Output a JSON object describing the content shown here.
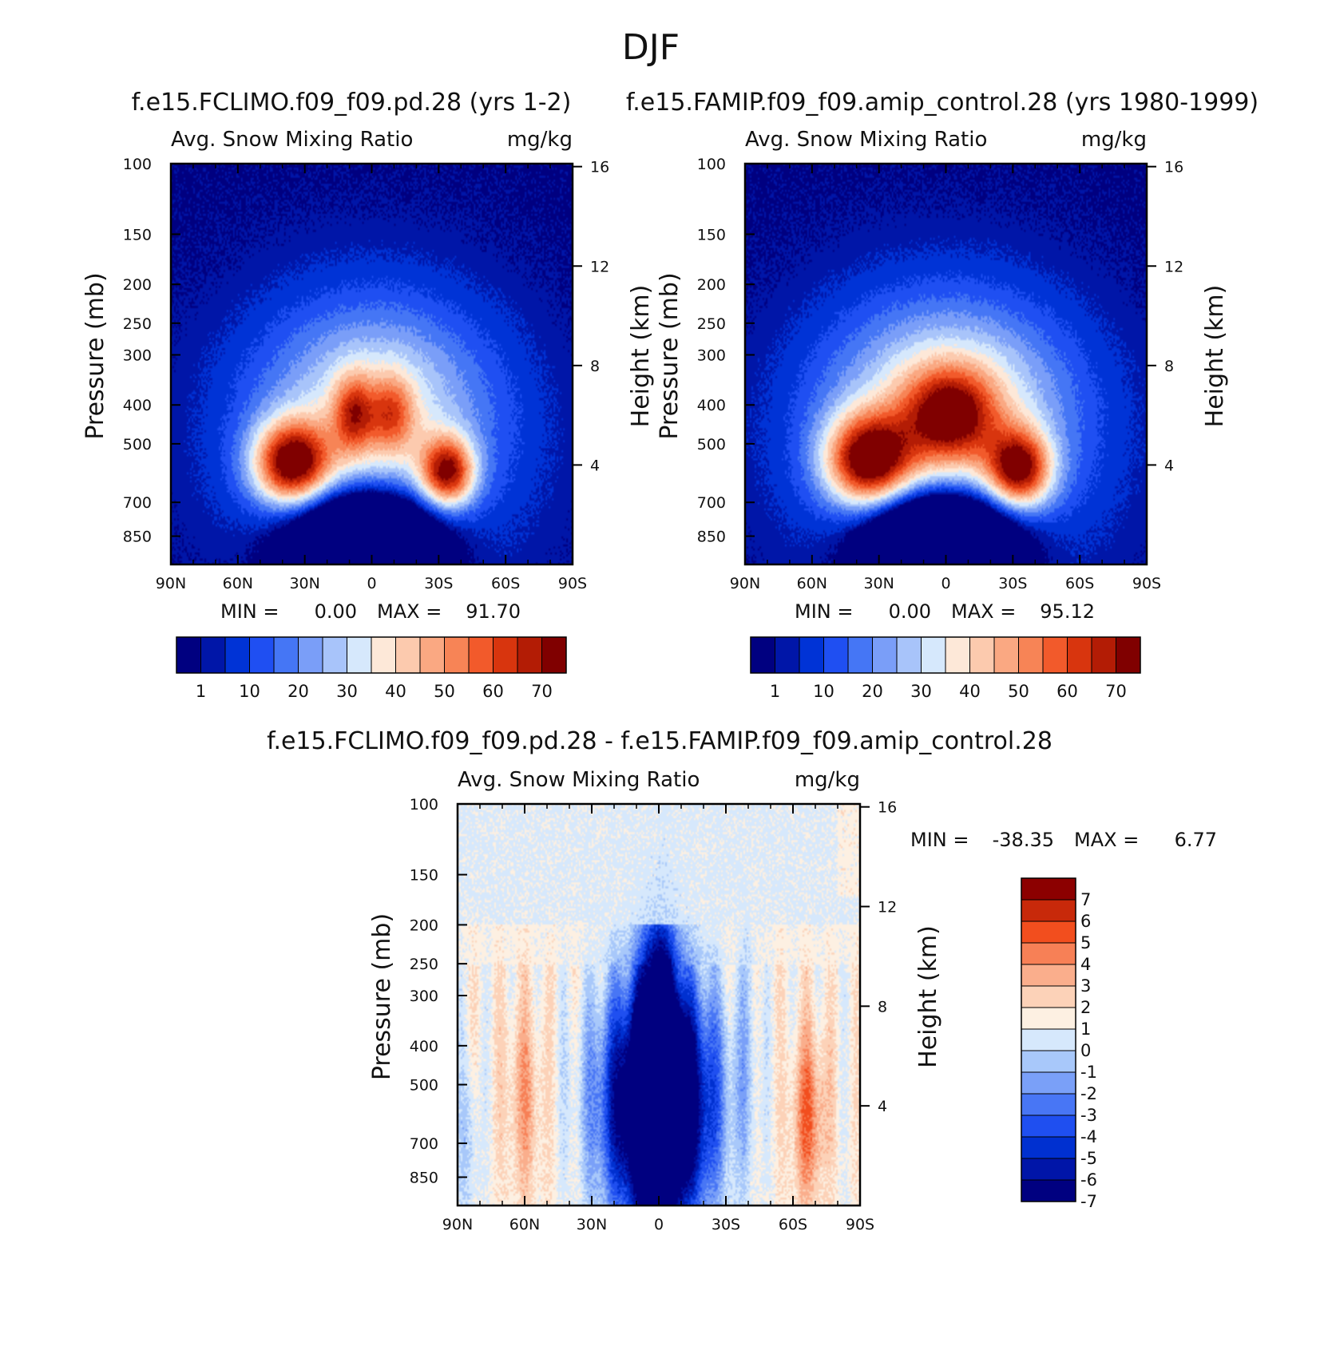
{
  "figure": {
    "title": "DJF"
  },
  "palettes": {
    "abs": [
      "#000080",
      "#0016a8",
      "#0033d6",
      "#1f4ff2",
      "#4576f5",
      "#7a9ef8",
      "#a8c4fa",
      "#d6e8fc",
      "#fde8d8",
      "#fccaae",
      "#faa882",
      "#f78456",
      "#f25a2b",
      "#d8350e",
      "#b31c05",
      "#800000"
    ],
    "diff": [
      "#000080",
      "#0015a8",
      "#0030d0",
      "#1f4ff0",
      "#4876f5",
      "#7aa0f8",
      "#a8c8fa",
      "#d6e8fc",
      "#fdf0e2",
      "#fcd2b8",
      "#faae8c",
      "#f78056",
      "#f24e1e",
      "#c8290a",
      "#8c0000"
    ]
  },
  "chart_data": [
    {
      "id": "panel-1",
      "type": "contour",
      "case_title": "f.e15.FCLIMO.f09_f09.pd.28 (yrs 1-2)",
      "variable": "Avg. Snow Mixing Ratio",
      "units": "mg/kg",
      "ylabel": "Pressure (mb)",
      "y2label": "Height (km)",
      "x_ticks": [
        "90N",
        "60N",
        "30N",
        "0",
        "30S",
        "60S",
        "90S"
      ],
      "y_ticks": [
        "100",
        "150",
        "200",
        "250",
        "300",
        "400",
        "500",
        "700",
        "850"
      ],
      "y2_ticks": [
        "16",
        "12",
        "8",
        "4"
      ],
      "min_label": "MIN =",
      "min_value": "0.00",
      "max_label": "MAX =",
      "max_value": "91.70",
      "colorbar_labels": [
        "1",
        "10",
        "20",
        "30",
        "40",
        "50",
        "60",
        "70"
      ],
      "xlim": [
        -90,
        90
      ],
      "ylim_mb": [
        100,
        1000
      ],
      "blobs": [
        {
          "lat": -1,
          "p": 500,
          "slat": 60,
          "sp": 0.78,
          "amp": 24
        },
        {
          "lat": -1,
          "p": 380,
          "slat": 48,
          "sp": 0.55,
          "amp": 16
        },
        {
          "lat": -34,
          "p": 590,
          "slat": 12,
          "sp": 0.2,
          "amp": 55
        },
        {
          "lat": 8,
          "p": 420,
          "slat": 9,
          "sp": 0.22,
          "amp": 32
        },
        {
          "lat": -9,
          "p": 420,
          "slat": 10,
          "sp": 0.22,
          "amp": 26
        },
        {
          "lat": 36,
          "p": 560,
          "slat": 17,
          "sp": 0.24,
          "amp": 62
        }
      ],
      "hole": {
        "lat": 3,
        "p": 900,
        "slat": 30,
        "sp": 0.28,
        "amp": 95
      }
    },
    {
      "id": "panel-2",
      "type": "contour",
      "case_title": "f.e15.FAMIP.f09_f09.amip_control.28 (yrs 1980-1999)",
      "variable": "Avg. Snow Mixing Ratio",
      "units": "mg/kg",
      "ylabel": "Pressure (mb)",
      "y2label": "Height (km)",
      "x_ticks": [
        "90N",
        "60N",
        "30N",
        "0",
        "30S",
        "60S",
        "90S"
      ],
      "y_ticks": [
        "100",
        "150",
        "200",
        "250",
        "300",
        "400",
        "500",
        "700",
        "850"
      ],
      "y2_ticks": [
        "16",
        "12",
        "8",
        "4"
      ],
      "min_label": "MIN =",
      "min_value": "0.00",
      "max_label": "MAX =",
      "max_value": "95.12",
      "colorbar_labels": [
        "1",
        "10",
        "20",
        "30",
        "40",
        "50",
        "60",
        "70"
      ],
      "xlim": [
        -90,
        90
      ],
      "ylim_mb": [
        100,
        1000
      ],
      "blobs": [
        {
          "lat": -1,
          "p": 500,
          "slat": 62,
          "sp": 0.78,
          "amp": 26
        },
        {
          "lat": -1,
          "p": 380,
          "slat": 50,
          "sp": 0.55,
          "amp": 20
        },
        {
          "lat": -33,
          "p": 580,
          "slat": 14,
          "sp": 0.22,
          "amp": 55
        },
        {
          "lat": -2,
          "p": 420,
          "slat": 20,
          "sp": 0.26,
          "amp": 40
        },
        {
          "lat": 35,
          "p": 550,
          "slat": 19,
          "sp": 0.26,
          "amp": 60
        }
      ],
      "hole": {
        "lat": 2,
        "p": 900,
        "slat": 30,
        "sp": 0.28,
        "amp": 100
      }
    },
    {
      "id": "panel-diff",
      "type": "contour",
      "case_title": "f.e15.FCLIMO.f09_f09.pd.28 - f.e15.FAMIP.f09_f09.amip_control.28",
      "variable": "Avg. Snow Mixing Ratio",
      "units": "mg/kg",
      "ylabel": "Pressure (mb)",
      "y2label": "Height (km)",
      "x_ticks": [
        "90N",
        "60N",
        "30N",
        "0",
        "30S",
        "60S",
        "90S"
      ],
      "y_ticks": [
        "100",
        "150",
        "200",
        "250",
        "300",
        "400",
        "500",
        "700",
        "850"
      ],
      "y2_ticks": [
        "16",
        "12",
        "8",
        "4"
      ],
      "min_label": "MIN =",
      "min_value": "-38.35",
      "max_label": "MAX =",
      "max_value": "6.77",
      "colorbar_labels": [
        "7",
        "6",
        "5",
        "4",
        "3",
        "2",
        "1",
        "0",
        "-1",
        "-2",
        "-3",
        "-4",
        "-5",
        "-6",
        "-7"
      ],
      "xlim": [
        -90,
        90
      ],
      "ylim_mb": [
        100,
        1000
      ],
      "blobs": [
        {
          "lat": 0,
          "p": 560,
          "slat": 24,
          "sp": 0.7,
          "amp": -14
        },
        {
          "lat": 0,
          "p": 450,
          "slat": 8,
          "sp": 0.9,
          "amp": -9
        },
        {
          "lat": 60,
          "p": 550,
          "slat": 9,
          "sp": 0.55,
          "amp": 2.2
        },
        {
          "lat": -67,
          "p": 600,
          "slat": 8,
          "sp": 0.5,
          "amp": 3.4
        },
        {
          "lat": -40,
          "p": 400,
          "slat": 4,
          "sp": 0.8,
          "amp": -1.5
        },
        {
          "lat": 85,
          "p": 700,
          "slat": 5,
          "sp": 0.5,
          "amp": -1.8
        }
      ]
    }
  ]
}
